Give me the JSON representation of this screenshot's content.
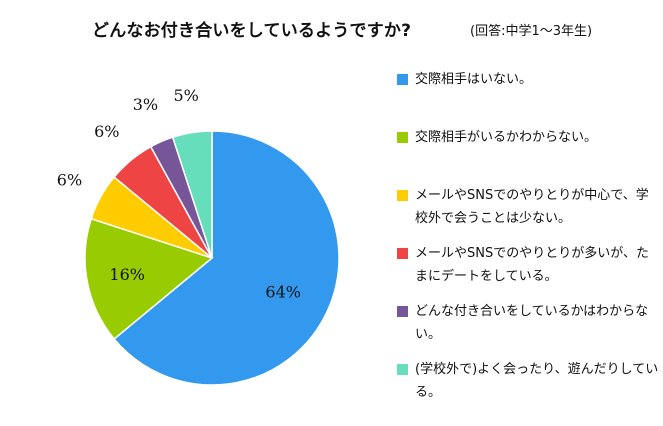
{
  "title": "どんなお付き合いをしているようですか?",
  "subtitle": "(回答:中学1〜3年生)",
  "chart_data": {
    "type": "pie",
    "title": "どんなお付き合いをしているようですか?",
    "subtitle": "(回答:中学1〜3年生)",
    "legend_position": "right",
    "start_angle": "12 o'clock, clockwise",
    "slices": [
      {
        "label": "交際相手はいない。",
        "value": 64,
        "display": "64%",
        "color": "#3399ee"
      },
      {
        "label": "交際相手がいるかわからない。",
        "value": 16,
        "display": "16%",
        "color": "#99cc00"
      },
      {
        "label": "メールやSNSでのやりとりが中心で、学校外で会うことは少ない。",
        "value": 6,
        "display": "6%",
        "color": "#ffcc00"
      },
      {
        "label": "メールやSNSでのやりとりが多いが、たまにデートをしている。",
        "value": 6,
        "display": "6%",
        "color": "#ee4444"
      },
      {
        "label": "どんな付き合いをしているかはわからない。",
        "value": 3,
        "display": "3%",
        "color": "#775599"
      },
      {
        "label": "(学校外で)よく会ったり、遊んだりしている。",
        "value": 5,
        "display": "5%",
        "color": "#66ddbb"
      }
    ]
  }
}
